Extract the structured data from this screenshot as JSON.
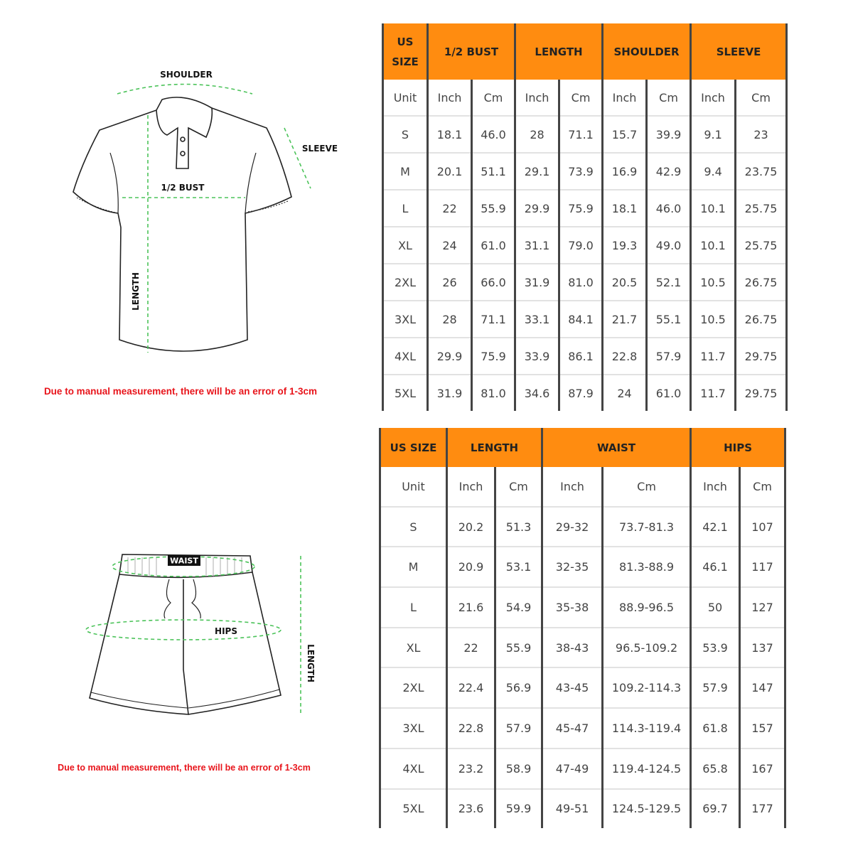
{
  "colors": {
    "header_bg": "#ff8c10",
    "measure_line": "#4cc35a",
    "note": "#e8141b"
  },
  "shirt": {
    "labels": {
      "shoulder": "SHOULDER",
      "sleeve": "SLEEVE",
      "bust": "1/2  BUST",
      "length": "LENGTH"
    },
    "note": "Due to manual measurement, there will be an error of 1-3cm"
  },
  "shorts": {
    "labels": {
      "waist": "WAIST",
      "hips": "HIPS",
      "length": "LENGTH"
    },
    "note": "Due to manual measurement, there will be an error of 1-3cm"
  },
  "shirt_table": {
    "headers": [
      "US SIZE",
      "1/2 BUST",
      "LENGTH",
      "SHOULDER",
      "SLEEVE"
    ],
    "units": [
      "Unit",
      "Inch",
      "Cm",
      "Inch",
      "Cm",
      "Inch",
      "Cm",
      "Inch",
      "Cm"
    ],
    "rows": [
      [
        "S",
        "18.1",
        "46.0",
        "28",
        "71.1",
        "15.7",
        "39.9",
        "9.1",
        "23"
      ],
      [
        "M",
        "20.1",
        "51.1",
        "29.1",
        "73.9",
        "16.9",
        "42.9",
        "9.4",
        "23.75"
      ],
      [
        "L",
        "22",
        "55.9",
        "29.9",
        "75.9",
        "18.1",
        "46.0",
        "10.1",
        "25.75"
      ],
      [
        "XL",
        "24",
        "61.0",
        "31.1",
        "79.0",
        "19.3",
        "49.0",
        "10.1",
        "25.75"
      ],
      [
        "2XL",
        "26",
        "66.0",
        "31.9",
        "81.0",
        "20.5",
        "52.1",
        "10.5",
        "26.75"
      ],
      [
        "3XL",
        "28",
        "71.1",
        "33.1",
        "84.1",
        "21.7",
        "55.1",
        "10.5",
        "26.75"
      ],
      [
        "4XL",
        "29.9",
        "75.9",
        "33.9",
        "86.1",
        "22.8",
        "57.9",
        "11.7",
        "29.75"
      ],
      [
        "5XL",
        "31.9",
        "81.0",
        "34.6",
        "87.9",
        "24",
        "61.0",
        "11.7",
        "29.75"
      ]
    ]
  },
  "shorts_table": {
    "headers": [
      "US SIZE",
      "LENGTH",
      "WAIST",
      "HIPS"
    ],
    "units": [
      "Unit",
      "Inch",
      "Cm",
      "Inch",
      "Cm",
      "Inch",
      "Cm"
    ],
    "rows": [
      [
        "S",
        "20.2",
        "51.3",
        "29-32",
        "73.7-81.3",
        "42.1",
        "107"
      ],
      [
        "M",
        "20.9",
        "53.1",
        "32-35",
        "81.3-88.9",
        "46.1",
        "117"
      ],
      [
        "L",
        "21.6",
        "54.9",
        "35-38",
        "88.9-96.5",
        "50",
        "127"
      ],
      [
        "XL",
        "22",
        "55.9",
        "38-43",
        "96.5-109.2",
        "53.9",
        "137"
      ],
      [
        "2XL",
        "22.4",
        "56.9",
        "43-45",
        "109.2-114.3",
        "57.9",
        "147"
      ],
      [
        "3XL",
        "22.8",
        "57.9",
        "45-47",
        "114.3-119.4",
        "61.8",
        "157"
      ],
      [
        "4XL",
        "23.2",
        "58.9",
        "47-49",
        "119.4-124.5",
        "65.8",
        "167"
      ],
      [
        "5XL",
        "23.6",
        "59.9",
        "49-51",
        "124.5-129.5",
        "69.7",
        "177"
      ]
    ]
  }
}
